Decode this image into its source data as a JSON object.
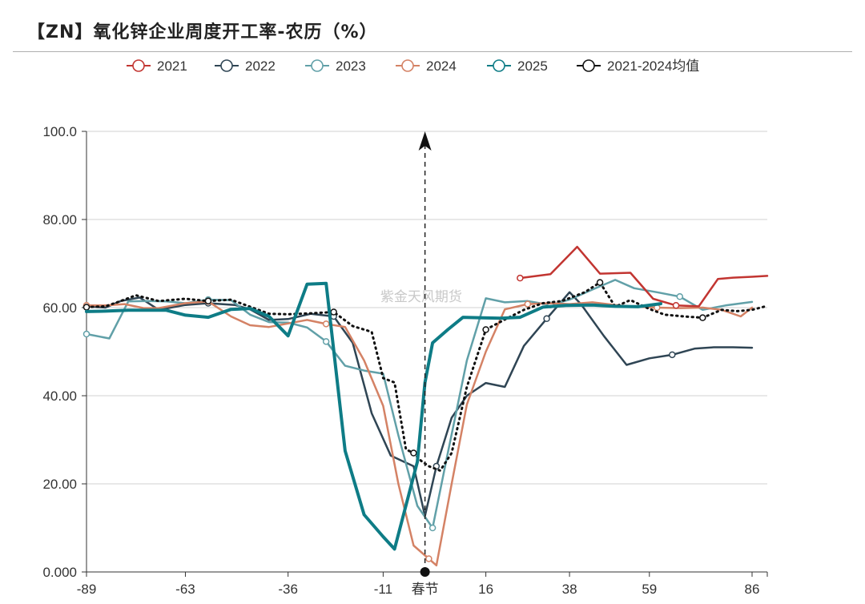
{
  "title": "【ZN】氧化锌企业周度开工率-农历（%）",
  "watermark": "紫金天风期货",
  "colors": {
    "2021": "#c23531",
    "2022": "#2f4554",
    "2023": "#61a0a8",
    "2024": "#d48265",
    "2025": "#0e7c86",
    "avg": "#111111",
    "grid": "#d0d0d0",
    "axis": "#333333"
  },
  "chart_data": {
    "type": "line",
    "title": "【ZN】氧化锌企业周度开工率-农历（%）",
    "xlabel": "",
    "ylabel": "",
    "xlim": [
      -89,
      90
    ],
    "ylim": [
      0,
      100
    ],
    "x_ticks": [
      {
        "value": -89,
        "label": "-89"
      },
      {
        "value": -63,
        "label": "-63"
      },
      {
        "value": -36,
        "label": "-36"
      },
      {
        "value": -11,
        "label": "-11"
      },
      {
        "value": 0,
        "label": "春节"
      },
      {
        "value": 16,
        "label": "16"
      },
      {
        "value": 38,
        "label": "38"
      },
      {
        "value": 59,
        "label": "59"
      },
      {
        "value": 86,
        "label": "86"
      }
    ],
    "y_ticks": [
      "0.000",
      "20.00",
      "40.00",
      "60.00",
      "80.00",
      "100.0"
    ],
    "y_tick_values": [
      0,
      20,
      40,
      60,
      80,
      100
    ],
    "grid": true,
    "legend_position": "top-center",
    "marker_annotation": {
      "x": 0,
      "label": "春节",
      "arrow": "dashed vertical arrow upward"
    },
    "series": [
      {
        "name": "2021",
        "key": "2021",
        "width": 2.5,
        "style": "solid",
        "x": [
          25,
          33,
          40,
          46,
          54,
          60,
          66,
          72,
          77,
          81,
          86,
          90
        ],
        "y": [
          66.7,
          67.6,
          73.8,
          67.7,
          67.9,
          62,
          60.5,
          60.3,
          66.5,
          66.8,
          67.0,
          67.2
        ]
      },
      {
        "name": "2022",
        "key": "2022",
        "width": 2.5,
        "style": "solid",
        "x": [
          -89,
          -84,
          -80,
          -75,
          -70,
          -63,
          -57,
          -50,
          -46,
          -41,
          -36,
          -30,
          -24,
          -19,
          -14,
          -9,
          -3,
          0,
          3,
          7,
          11,
          16,
          21,
          26,
          32,
          38,
          41,
          47,
          53,
          59,
          65,
          71,
          76,
          81,
          86
        ],
        "y": [
          60.3,
          60.0,
          61.5,
          62.3,
          59.5,
          60.6,
          61.0,
          60.6,
          59.6,
          57.2,
          57.4,
          58.6,
          58.0,
          52,
          36,
          26.4,
          24,
          12.7,
          24,
          35,
          40,
          42.9,
          42.0,
          51.3,
          57.5,
          63.5,
          60.8,
          53.6,
          47,
          48.5,
          49.3,
          50.7,
          51.0,
          51.0,
          50.9
        ]
      },
      {
        "name": "2023",
        "key": "2023",
        "width": 2.5,
        "style": "solid",
        "x": [
          -89,
          -83,
          -78,
          -73,
          -68,
          -63,
          -57,
          -51,
          -46,
          -41,
          -36,
          -31,
          -26,
          -21,
          -16,
          -11,
          -7,
          -2,
          2,
          6,
          11,
          16,
          21,
          27,
          33,
          38,
          44,
          50,
          55,
          61,
          67,
          73,
          79,
          86
        ],
        "y": [
          54,
          53,
          61.4,
          61.5,
          61.4,
          61.0,
          61.8,
          61.7,
          58.4,
          56.7,
          56.6,
          55.5,
          52.3,
          46.8,
          45.7,
          45.0,
          31,
          15,
          10,
          27,
          48,
          62.1,
          61.2,
          61.5,
          60.6,
          61.8,
          64.1,
          66.3,
          64.4,
          63.5,
          62.5,
          59.5,
          60.5,
          61.3
        ]
      },
      {
        "name": "2024",
        "key": "2024",
        "width": 2.5,
        "style": "solid",
        "x": [
          -89,
          -84,
          -79,
          -74,
          -70,
          -63,
          -57,
          -51,
          -46,
          -41,
          -36,
          -31,
          -26,
          -21,
          -16,
          -11,
          -7,
          -3,
          1,
          3,
          7,
          11,
          16,
          21,
          27,
          33,
          38,
          44,
          50,
          55,
          61,
          67,
          73,
          78,
          83,
          86
        ],
        "y": [
          60.5,
          60.5,
          60.8,
          59.9,
          59.9,
          61.0,
          61.4,
          58.0,
          56.0,
          55.6,
          56.4,
          57.2,
          56.3,
          55.6,
          48,
          37.7,
          20,
          6,
          3,
          1.5,
          20,
          38,
          50,
          59.6,
          60.8,
          61.0,
          60.8,
          61.2,
          60.6,
          60.2,
          60.0,
          59.9,
          60.0,
          59.5,
          58.0,
          60.0
        ]
      },
      {
        "name": "2025",
        "key": "2025",
        "width": 4,
        "style": "solid",
        "x": [
          -89,
          -84,
          -78,
          -73,
          -68,
          -63,
          -57,
          -51,
          -46,
          -41,
          -36,
          -31,
          -26,
          -21,
          -16,
          -11,
          -8,
          -2,
          0,
          2,
          6,
          10,
          14,
          20,
          25,
          31,
          37,
          44,
          50,
          56,
          62
        ],
        "y": [
          59.1,
          59.2,
          59.4,
          59.4,
          59.4,
          58.3,
          57.8,
          59.6,
          59.8,
          58.0,
          53.6,
          65.3,
          65.5,
          27.5,
          13,
          8,
          5.2,
          25,
          43,
          52,
          55,
          57.8,
          57.7,
          57.6,
          57.8,
          60.1,
          60.5,
          60.6,
          60.3,
          60.2,
          60.9
        ]
      },
      {
        "name": "2021-2024均值",
        "key": "avg",
        "width": 3,
        "style": "dotted",
        "x": [
          -89,
          -84,
          -80,
          -76,
          -70,
          -63,
          -57,
          -51,
          -46,
          -41,
          -36,
          -30,
          -24,
          -19,
          -14,
          -11,
          -8,
          -5,
          -3,
          -1,
          1,
          4,
          7,
          11,
          16,
          21,
          26,
          31,
          36,
          42,
          46,
          50,
          54,
          59,
          63,
          68,
          73,
          78,
          82,
          86,
          90
        ],
        "y": [
          60.1,
          60.3,
          61.5,
          62.8,
          61.5,
          62.0,
          61.5,
          61.8,
          60.2,
          58.6,
          58.5,
          58.7,
          59.0,
          55.8,
          54.5,
          44.0,
          43.0,
          27.8,
          27.0,
          25.2,
          24.0,
          23.0,
          27.0,
          42.0,
          55.0,
          57.3,
          59.5,
          61.0,
          61.5,
          63.5,
          65.7,
          60.2,
          61.7,
          59.7,
          58.4,
          58.0,
          57.7,
          59.5,
          59.2,
          59.5,
          60.4
        ]
      }
    ]
  }
}
